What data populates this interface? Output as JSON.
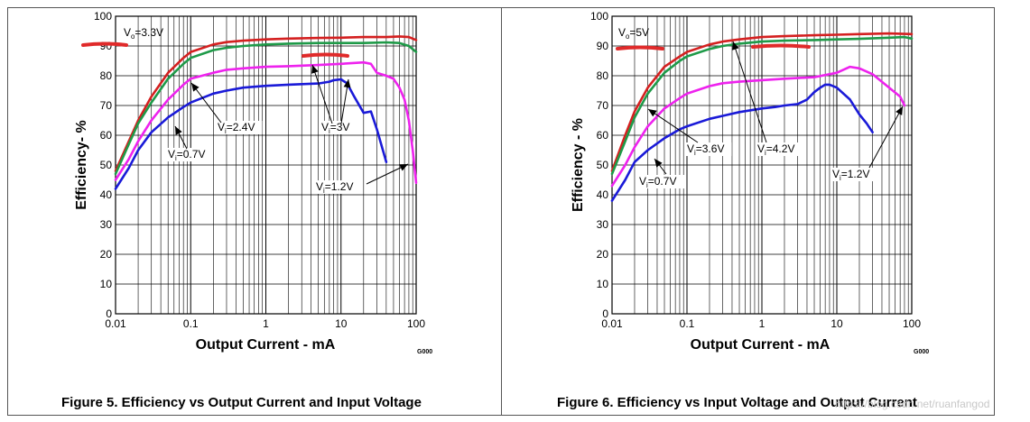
{
  "captions": {
    "fig5": "Figure 5. Efficiency vs Output Current and Input Voltage",
    "fig6": "Figure 6. Efficiency vs Input Voltage and Output Current"
  },
  "watermark": "https://blog.csdn.net/ruanfangod",
  "chart_data": [
    {
      "type": "line",
      "figure": "Figure 5",
      "xlabel": "Output Current - mA",
      "ylabel": "Efficiency- %",
      "xscale": "log",
      "xlim": [
        0.01,
        100
      ],
      "ylim": [
        0,
        100
      ],
      "x_ticks": [
        0.01,
        0.1,
        1,
        10,
        100
      ],
      "x_tick_labels": [
        "0.01",
        "0.1",
        "1",
        "10",
        "100"
      ],
      "y_ticks": [
        0,
        10,
        20,
        30,
        40,
        50,
        60,
        70,
        80,
        90,
        100
      ],
      "y_tick_labels": [
        "0",
        "10",
        "20",
        "30",
        "40",
        "50",
        "60",
        "70",
        "80",
        "90",
        "100"
      ],
      "grid": true,
      "code": "G000",
      "series": [
        {
          "name": "Vi=3V",
          "color": "#d42020",
          "x": [
            0.01,
            0.015,
            0.02,
            0.03,
            0.05,
            0.08,
            0.1,
            0.2,
            0.3,
            0.5,
            1,
            2,
            5,
            10,
            20,
            40,
            60,
            80,
            100
          ],
          "y": [
            48,
            58,
            65,
            73,
            81,
            86,
            88,
            90.5,
            91.3,
            91.8,
            92.2,
            92.5,
            92.7,
            92.8,
            93,
            93,
            93.2,
            93,
            92
          ]
        },
        {
          "name": "Vi=2.4V",
          "color": "#1e9a48",
          "x": [
            0.01,
            0.015,
            0.02,
            0.03,
            0.05,
            0.08,
            0.1,
            0.2,
            0.3,
            0.5,
            1,
            2,
            5,
            10,
            20,
            40,
            60,
            80,
            100
          ],
          "y": [
            47,
            57,
            64,
            71,
            79,
            84,
            86,
            88.6,
            89.4,
            90,
            90.5,
            90.8,
            91,
            91,
            91,
            91.2,
            91,
            90,
            88
          ]
        },
        {
          "name": "Vi=1.2V",
          "color": "#ee22ee",
          "x": [
            0.01,
            0.015,
            0.02,
            0.03,
            0.05,
            0.08,
            0.1,
            0.2,
            0.3,
            0.5,
            1,
            2,
            5,
            10,
            20,
            25,
            30,
            40,
            50,
            60,
            70,
            80,
            90,
            100
          ],
          "y": [
            45,
            52,
            58,
            65,
            72,
            77,
            79,
            81,
            82,
            82.5,
            83,
            83.2,
            83.6,
            84,
            84.5,
            84,
            81,
            80,
            79,
            76,
            72,
            65,
            55,
            44
          ]
        },
        {
          "name": "Vi=0.7V",
          "color": "#1a1ad8",
          "x": [
            0.01,
            0.015,
            0.02,
            0.03,
            0.05,
            0.08,
            0.1,
            0.2,
            0.3,
            0.5,
            1,
            2,
            5,
            7,
            8,
            10,
            12,
            15,
            20,
            25,
            30,
            40
          ],
          "y": [
            42,
            49,
            55,
            61,
            66,
            69.5,
            71,
            74,
            75,
            76,
            76.6,
            77,
            77.4,
            78,
            78.5,
            78.8,
            77.5,
            73,
            67.5,
            68,
            62,
            51
          ]
        }
      ],
      "annotations": [
        "Vo=3.3V",
        "Vi=2.4V",
        "Vi=3V",
        "Vi=0.7V",
        "Vi=1.2V"
      ]
    },
    {
      "type": "line",
      "figure": "Figure 6",
      "xlabel": "Output Current - mA",
      "ylabel": "Efficiency - %",
      "xscale": "log",
      "xlim": [
        0.01,
        100
      ],
      "ylim": [
        0,
        100
      ],
      "x_ticks": [
        0.01,
        0.1,
        1,
        10,
        100
      ],
      "x_tick_labels": [
        "0.01",
        "0.1",
        "1",
        "10",
        "100"
      ],
      "y_ticks": [
        0,
        10,
        20,
        30,
        40,
        50,
        60,
        70,
        80,
        90,
        100
      ],
      "y_tick_labels": [
        "0",
        "10",
        "20",
        "30",
        "40",
        "50",
        "60",
        "70",
        "80",
        "90",
        "100"
      ],
      "grid": true,
      "code": "G000",
      "series": [
        {
          "name": "Vi=4.2V",
          "color": "#d42020",
          "x": [
            0.01,
            0.015,
            0.02,
            0.03,
            0.05,
            0.08,
            0.1,
            0.2,
            0.3,
            0.5,
            1,
            2,
            5,
            10,
            20,
            50,
            100
          ],
          "y": [
            48,
            60,
            68,
            76,
            83,
            86.5,
            88,
            90.5,
            91.5,
            92.2,
            93,
            93.3,
            93.6,
            93.8,
            94,
            94.2,
            94
          ]
        },
        {
          "name": "Vi=3.6V",
          "color": "#1e9a48",
          "x": [
            0.01,
            0.015,
            0.02,
            0.03,
            0.05,
            0.08,
            0.1,
            0.2,
            0.3,
            0.5,
            1,
            2,
            5,
            10,
            20,
            50,
            80,
            100
          ],
          "y": [
            47,
            58,
            66,
            74,
            81,
            85,
            86.5,
            89,
            90,
            90.8,
            91.5,
            91.8,
            92,
            92.2,
            92.4,
            92.8,
            93,
            92.5
          ]
        },
        {
          "name": "Vi=1.2V",
          "color": "#ee22ee",
          "x": [
            0.01,
            0.015,
            0.02,
            0.03,
            0.05,
            0.08,
            0.1,
            0.2,
            0.3,
            0.5,
            1,
            2,
            5,
            10,
            15,
            20,
            30,
            50,
            70,
            80
          ],
          "y": [
            43,
            50,
            56,
            63,
            69,
            72.5,
            74,
            76.5,
            77.5,
            78,
            78.5,
            79,
            79.5,
            81,
            83,
            82.5,
            80.5,
            76,
            73,
            70
          ]
        },
        {
          "name": "Vi=0.7V",
          "color": "#1a1ad8",
          "x": [
            0.01,
            0.015,
            0.02,
            0.03,
            0.05,
            0.08,
            0.1,
            0.2,
            0.3,
            0.5,
            1,
            1.5,
            2,
            3,
            4,
            5,
            6,
            7,
            8,
            10,
            15,
            20,
            25,
            30
          ],
          "y": [
            38,
            45,
            51,
            55,
            59,
            62,
            63,
            65.5,
            66.5,
            67.8,
            69,
            69.5,
            70,
            70.5,
            72,
            74.5,
            76,
            77,
            77,
            76,
            72,
            67,
            64,
            61
          ]
        }
      ],
      "annotations": [
        "Vo=5V",
        "Vi=3.6V",
        "Vi=4.2V",
        "Vi=0.7V",
        "Vi=1.2V"
      ]
    }
  ]
}
